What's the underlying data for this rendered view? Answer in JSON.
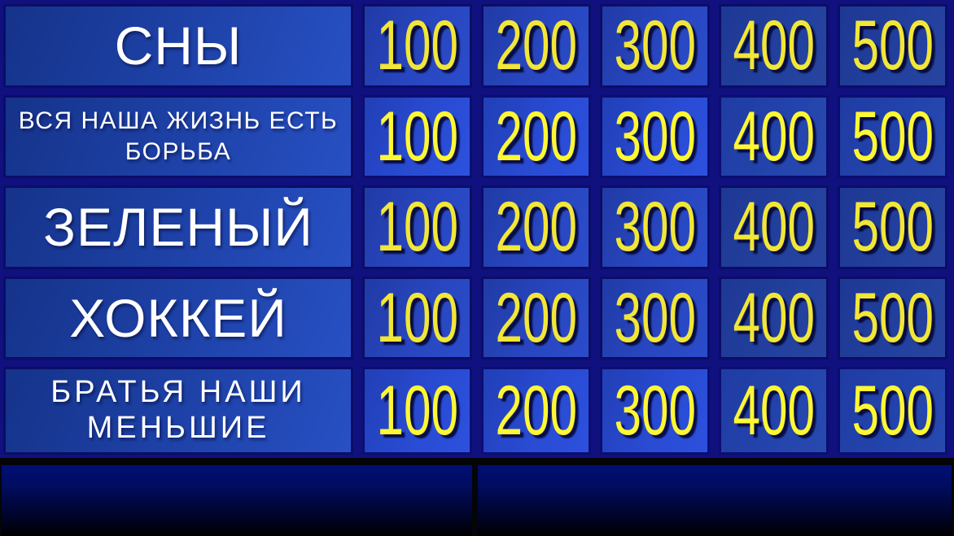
{
  "game_board": {
    "rows": [
      {
        "category": "СНЫ",
        "values": [
          "100",
          "200",
          "300",
          "400",
          "500"
        ]
      },
      {
        "category": "ВСЯ НАША ЖИЗНЬ ЕСТЬ БОРЬБА",
        "values": [
          "100",
          "200",
          "300",
          "400",
          "500"
        ]
      },
      {
        "category": "ЗЕЛЕНЫЙ",
        "values": [
          "100",
          "200",
          "300",
          "400",
          "500"
        ]
      },
      {
        "category": "ХОККЕЙ",
        "values": [
          "100",
          "200",
          "300",
          "400",
          "500"
        ]
      },
      {
        "category": "БРАТЬЯ НАШИ МЕНЬШИЕ",
        "values": [
          "100",
          "200",
          "300",
          "400",
          "500"
        ]
      }
    ]
  },
  "colors": {
    "board_background": "#10117f",
    "cell_border": "#0b0d66",
    "category_text": "#ffffff",
    "value_text": "#f2e636",
    "cell_blue_dark": "#203ba6",
    "cell_blue_bright": "#2b4ccb",
    "bottom_gradient_top": "#000f75",
    "bottom_gradient_bottom": "#000000"
  }
}
